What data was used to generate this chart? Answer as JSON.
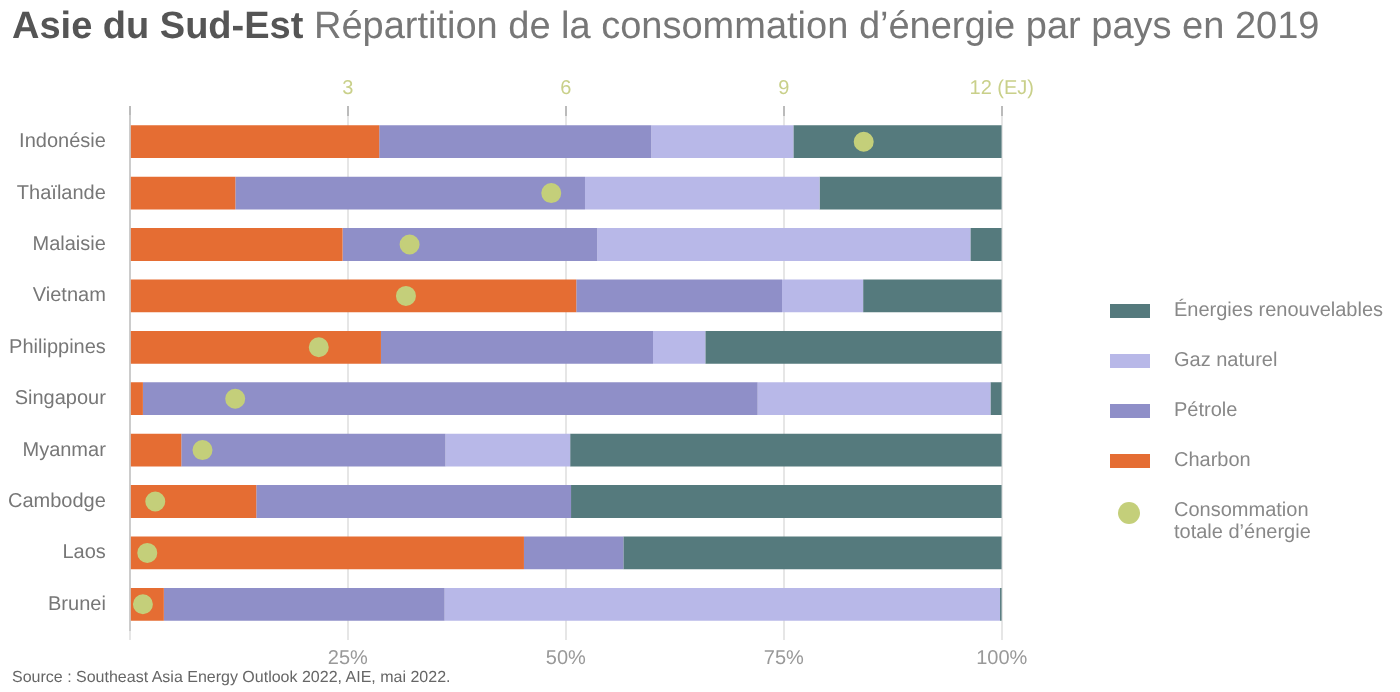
{
  "chart_data": {
    "type": "bar",
    "orientation": "horizontal",
    "stacked": true,
    "title": "Asie du Sud-Est",
    "subtitle": "Répartition de la consommation d’énergie par pays en 2019",
    "categories": [
      "Indonésie",
      "Thaïlande",
      "Malaisie",
      "Vietnam",
      "Philippines",
      "Singapour",
      "Myanmar",
      "Cambodge",
      "Laos",
      "Brunei"
    ],
    "series": [
      {
        "name": "Charbon",
        "color": "#e56d33",
        "values": [
          28.6,
          12.1,
          24.4,
          51.2,
          28.8,
          1.5,
          5.9,
          14.5,
          45.2,
          3.9
        ]
      },
      {
        "name": "Pétrole",
        "color": "#8f8fc8",
        "values": [
          31.2,
          40.1,
          29.2,
          23.6,
          31.2,
          70.5,
          30.3,
          36.1,
          11.4,
          32.2
        ]
      },
      {
        "name": "Gaz naturel",
        "color": "#b8b8e8",
        "values": [
          16.3,
          26.9,
          42.8,
          9.3,
          6.0,
          26.7,
          14.3,
          0,
          0,
          63.7
        ]
      },
      {
        "name": "Énergies renouvelables",
        "color": "#557a7d",
        "values": [
          23.9,
          20.9,
          3.6,
          15.9,
          34.0,
          1.3,
          49.5,
          49.4,
          43.4,
          0.2
        ]
      },
      {
        "name": "Consommation totale d’énergie",
        "type": "scatter",
        "axis": "x2",
        "color": "#c4cf7a",
        "marker": "circle",
        "values": [
          10.1,
          5.8,
          3.85,
          3.8,
          2.6,
          1.45,
          1.0,
          0.35,
          0.24,
          0.18
        ]
      }
    ],
    "xlim": [
      0,
      100
    ],
    "xticks": [
      {
        "value": 0,
        "label": null
      },
      {
        "value": 25,
        "label": "25%"
      },
      {
        "value": 50,
        "label": "50%"
      },
      {
        "value": 75,
        "label": "75%"
      },
      {
        "value": 100,
        "label": "100%"
      }
    ],
    "x2lim": [
      0,
      12
    ],
    "x2ticks": [
      {
        "value": 0,
        "label": null
      },
      3,
      6,
      9,
      {
        "value": 12,
        "label": "12 (EJ)"
      }
    ],
    "grid": "x",
    "legend": "right",
    "annotations": [
      "Source : Southeast Asia Energy Outlook 2022, AIE, mai 2022."
    ]
  }
}
